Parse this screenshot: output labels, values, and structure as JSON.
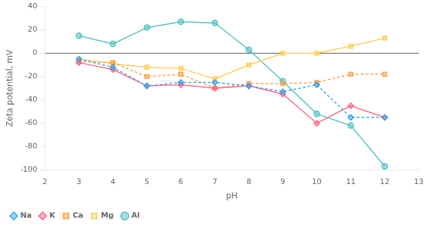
{
  "chart_data": {
    "type": "line",
    "xlabel": "pH",
    "ylabel": "Zeta potential, mV",
    "x": [
      3,
      4,
      5,
      6,
      7,
      8,
      9,
      10,
      11,
      12
    ],
    "series": [
      {
        "name": "Na",
        "values": [
          -5,
          -12,
          -28,
          -25,
          -25,
          -28,
          -33,
          -27,
          -55,
          -55
        ],
        "marker": "diamond",
        "line_style": "dotted"
      },
      {
        "name": "K",
        "values": [
          -8,
          -14,
          -28,
          -27,
          -30,
          -28,
          -35,
          -60,
          -45,
          -55
        ],
        "marker": "diamond",
        "line_style": "solid"
      },
      {
        "name": "Ca",
        "values": [
          -7,
          -8,
          -20,
          -18,
          -30,
          -26,
          -26,
          -25,
          -18,
          -18
        ],
        "marker": "square",
        "line_style": "dotted"
      },
      {
        "name": "Mg",
        "values": [
          -5,
          -9,
          -12,
          -13,
          -22,
          -10,
          0,
          0,
          6,
          13
        ],
        "marker": "square",
        "line_style": "solid"
      },
      {
        "name": "Al",
        "values": [
          15,
          8,
          22,
          27,
          26,
          3,
          -24,
          -52,
          -62,
          -97
        ],
        "marker": "circle",
        "line_style": "solid"
      }
    ],
    "xlim": [
      2,
      13
    ],
    "ylim": [
      -100,
      40
    ],
    "xticks": [
      2,
      3,
      4,
      5,
      6,
      7,
      8,
      9,
      10,
      11,
      12,
      13
    ],
    "yticks": [
      -100,
      -80,
      -60,
      -40,
      -20,
      0,
      20,
      40
    ],
    "grid": false,
    "legend": "lower left"
  }
}
